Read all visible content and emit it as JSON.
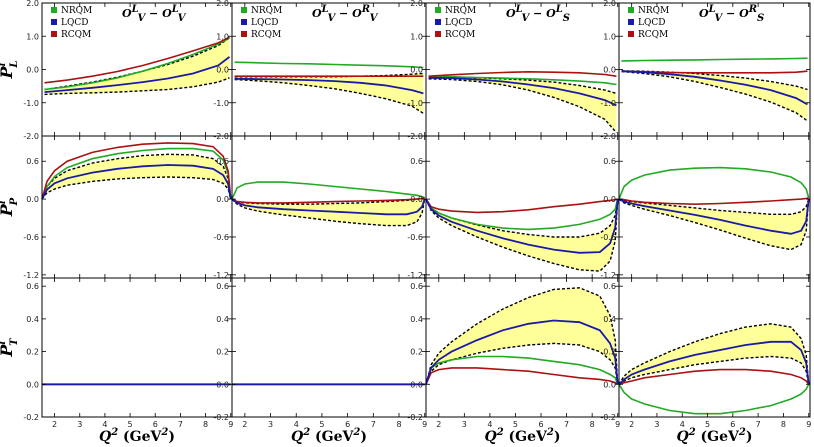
{
  "figure": {
    "row_labels": [
      {
        "main": "P",
        "sup": "i",
        "sub": "L"
      },
      {
        "main": "P",
        "sup": "i",
        "sub": "P"
      },
      {
        "main": "P",
        "sup": "i",
        "sub": "T"
      }
    ],
    "xlabel": {
      "main": "Q",
      "sup": "2",
      "units": " (GeV",
      "units_sup": "2",
      "units_end": ")"
    },
    "x_ticks": [
      "2",
      "3",
      "4",
      "5",
      "6",
      "7",
      "8",
      "9"
    ],
    "legend": [
      "NRQM",
      "LQCD",
      "RCQM"
    ],
    "panel_titles": [
      {
        "base": "O",
        "sup1": "L",
        "sub1": "V",
        "sep": " − ",
        "base2": "O",
        "sup2": "L",
        "sub2": "V"
      },
      {
        "base": "O",
        "sup1": "L",
        "sub1": "V",
        "sep": " − ",
        "base2": "O",
        "sup2": "R",
        "sub2": "V"
      },
      {
        "base": "O",
        "sup1": "L",
        "sub1": "V",
        "sep": " − ",
        "base2": "O",
        "sup2": "L",
        "sub2": "S"
      },
      {
        "base": "O",
        "sup1": "L",
        "sub1": "V",
        "sep": " − ",
        "base2": "O",
        "sup2": "R",
        "sub2": "S"
      }
    ],
    "colors": {
      "NRQM": "#22aa22",
      "LQCD": "#1a1aa8",
      "RCQM": "#aa1111",
      "band": "#ffff99",
      "band_edge": "#000000"
    }
  },
  "chart_data": {
    "type": "line",
    "xlabel": "Q^2 (GeV^2)",
    "xlim": [
      1.5,
      9.05
    ],
    "rows": [
      {
        "ylabel": "P_L^i",
        "ylim": [
          -2.0,
          2.0
        ],
        "y_ticks": [
          -2.0,
          -1.0,
          0.0,
          1.0,
          2.0
        ],
        "y_tick_labels": [
          "-2.0",
          "-1.0",
          "0.0",
          "1.0",
          "2.0"
        ],
        "panels": [
          {
            "x": [
              1.6,
              2.5,
              3.5,
              4.5,
              5.5,
              6.5,
              7.5,
              8.5,
              8.95
            ],
            "NRQM": [
              -0.6,
              -0.52,
              -0.4,
              -0.25,
              -0.05,
              0.18,
              0.45,
              0.76,
              0.95
            ],
            "LQCD": [
              -0.68,
              -0.62,
              -0.55,
              -0.47,
              -0.38,
              -0.27,
              -0.12,
              0.12,
              0.38
            ],
            "RCQM": [
              -0.4,
              -0.32,
              -0.2,
              -0.06,
              0.12,
              0.33,
              0.56,
              0.8,
              0.97
            ],
            "band_upper": [
              -0.6,
              -0.5,
              -0.38,
              -0.23,
              -0.05,
              0.15,
              0.4,
              0.72,
              0.95
            ],
            "band_lower": [
              -0.75,
              -0.72,
              -0.7,
              -0.68,
              -0.64,
              -0.6,
              -0.52,
              -0.38,
              -0.25
            ]
          },
          {
            "x": [
              1.6,
              2.5,
              3.5,
              4.5,
              5.5,
              6.5,
              7.5,
              8.5,
              8.95
            ],
            "NRQM": [
              0.22,
              0.2,
              0.18,
              0.17,
              0.15,
              0.13,
              0.11,
              0.08,
              0.06
            ],
            "LQCD": [
              -0.28,
              -0.29,
              -0.3,
              -0.32,
              -0.35,
              -0.4,
              -0.48,
              -0.62,
              -0.72
            ],
            "RCQM": [
              -0.2,
              -0.2,
              -0.2,
              -0.2,
              -0.2,
              -0.2,
              -0.2,
              -0.2,
              -0.2
            ],
            "band_upper": [
              -0.22,
              -0.22,
              -0.22,
              -0.22,
              -0.22,
              -0.2,
              -0.18,
              -0.14,
              -0.12
            ],
            "band_lower": [
              -0.3,
              -0.34,
              -0.4,
              -0.48,
              -0.58,
              -0.72,
              -0.88,
              -1.1,
              -1.32
            ]
          },
          {
            "x": [
              1.6,
              2.5,
              3.5,
              4.5,
              5.5,
              6.5,
              7.5,
              8.5,
              8.95
            ],
            "NRQM": [
              -0.22,
              -0.22,
              -0.24,
              -0.26,
              -0.28,
              -0.31,
              -0.35,
              -0.4,
              -0.45
            ],
            "LQCD": [
              -0.25,
              -0.26,
              -0.3,
              -0.36,
              -0.45,
              -0.56,
              -0.72,
              -0.92,
              -1.08
            ],
            "RCQM": [
              -0.2,
              -0.16,
              -0.12,
              -0.09,
              -0.07,
              -0.08,
              -0.1,
              -0.15,
              -0.2
            ],
            "band_upper": [
              -0.22,
              -0.22,
              -0.25,
              -0.28,
              -0.32,
              -0.38,
              -0.48,
              -0.62,
              -0.72
            ],
            "band_lower": [
              -0.28,
              -0.3,
              -0.36,
              -0.46,
              -0.62,
              -0.84,
              -1.12,
              -1.5,
              -1.9
            ]
          },
          {
            "x": [
              1.6,
              2.5,
              3.5,
              4.5,
              5.5,
              6.5,
              7.5,
              8.5,
              8.95
            ],
            "NRQM": [
              0.26,
              0.27,
              0.28,
              0.29,
              0.3,
              0.31,
              0.32,
              0.33,
              0.34
            ],
            "LQCD": [
              -0.05,
              -0.08,
              -0.14,
              -0.22,
              -0.33,
              -0.46,
              -0.62,
              -0.86,
              -1.05
            ],
            "RCQM": [
              -0.05,
              -0.07,
              -0.09,
              -0.1,
              -0.1,
              -0.1,
              -0.1,
              -0.08,
              -0.05
            ],
            "band_upper": [
              -0.04,
              -0.05,
              -0.08,
              -0.12,
              -0.18,
              -0.26,
              -0.36,
              -0.5,
              -0.6
            ],
            "band_lower": [
              -0.06,
              -0.12,
              -0.22,
              -0.36,
              -0.54,
              -0.74,
              -0.98,
              -1.3,
              -1.55
            ]
          }
        ]
      },
      {
        "ylabel": "P_P^i",
        "ylim": [
          -1.25,
          1.0
        ],
        "y_ticks": [
          -1.2,
          -0.6,
          0.0,
          0.6
        ],
        "y_tick_labels": [
          "-1.2",
          "-0.6",
          "0.0",
          "0.6"
        ],
        "panels": [
          {
            "x": [
              1.5,
              1.7,
              2.0,
              2.5,
              3.5,
              4.5,
              5.5,
              6.5,
              7.5,
              8.3,
              8.7,
              8.9,
              9.0
            ],
            "NRQM": [
              0.0,
              0.2,
              0.36,
              0.5,
              0.64,
              0.72,
              0.77,
              0.8,
              0.8,
              0.76,
              0.62,
              0.4,
              0.0
            ],
            "LQCD": [
              0.0,
              0.15,
              0.25,
              0.33,
              0.42,
              0.48,
              0.52,
              0.54,
              0.53,
              0.48,
              0.38,
              0.24,
              0.0
            ],
            "RCQM": [
              0.0,
              0.28,
              0.45,
              0.6,
              0.74,
              0.82,
              0.87,
              0.89,
              0.88,
              0.83,
              0.68,
              0.44,
              0.0
            ],
            "band_upper": [
              0.0,
              0.2,
              0.33,
              0.45,
              0.57,
              0.64,
              0.69,
              0.71,
              0.7,
              0.64,
              0.52,
              0.32,
              0.0
            ],
            "band_lower": [
              0.0,
              0.1,
              0.16,
              0.22,
              0.28,
              0.32,
              0.34,
              0.35,
              0.34,
              0.31,
              0.25,
              0.16,
              0.0
            ]
          },
          {
            "x": [
              1.5,
              1.7,
              2.0,
              2.5,
              3.5,
              4.5,
              5.5,
              6.5,
              7.5,
              8.3,
              8.7,
              8.9,
              9.0
            ],
            "NRQM": [
              0.0,
              0.18,
              0.24,
              0.27,
              0.27,
              0.24,
              0.2,
              0.16,
              0.12,
              0.08,
              0.06,
              0.04,
              0.02
            ],
            "LQCD": [
              0.0,
              -0.06,
              -0.1,
              -0.13,
              -0.16,
              -0.18,
              -0.2,
              -0.22,
              -0.24,
              -0.24,
              -0.2,
              -0.12,
              0.0
            ],
            "RCQM": [
              0.0,
              -0.04,
              -0.05,
              -0.06,
              -0.06,
              -0.05,
              -0.04,
              -0.03,
              -0.02,
              -0.01,
              0.0,
              0.01,
              0.02
            ],
            "band_upper": [
              0.0,
              -0.04,
              -0.06,
              -0.07,
              -0.08,
              -0.08,
              -0.07,
              -0.06,
              -0.04,
              -0.02,
              0.0,
              0.01,
              0.0
            ],
            "band_lower": [
              0.0,
              -0.08,
              -0.14,
              -0.19,
              -0.25,
              -0.3,
              -0.35,
              -0.39,
              -0.42,
              -0.42,
              -0.36,
              -0.22,
              0.0
            ]
          },
          {
            "x": [
              1.5,
              1.7,
              2.0,
              2.5,
              3.5,
              4.5,
              5.5,
              6.5,
              7.5,
              8.3,
              8.7,
              8.9,
              9.0
            ],
            "NRQM": [
              0.0,
              -0.14,
              -0.22,
              -0.3,
              -0.4,
              -0.46,
              -0.48,
              -0.46,
              -0.4,
              -0.32,
              -0.24,
              -0.16,
              0.0
            ],
            "LQCD": [
              0.0,
              -0.16,
              -0.26,
              -0.36,
              -0.5,
              -0.62,
              -0.72,
              -0.8,
              -0.85,
              -0.84,
              -0.7,
              -0.45,
              0.0
            ],
            "RCQM": [
              0.0,
              -0.12,
              -0.16,
              -0.19,
              -0.21,
              -0.2,
              -0.17,
              -0.12,
              -0.08,
              -0.04,
              -0.02,
              -0.01,
              0.0
            ],
            "band_upper": [
              0.0,
              -0.14,
              -0.22,
              -0.3,
              -0.41,
              -0.5,
              -0.56,
              -0.6,
              -0.6,
              -0.54,
              -0.42,
              -0.26,
              0.0
            ],
            "band_lower": [
              0.0,
              -0.18,
              -0.3,
              -0.42,
              -0.6,
              -0.76,
              -0.9,
              -1.02,
              -1.12,
              -1.14,
              -0.98,
              -0.66,
              0.0
            ]
          },
          {
            "x": [
              1.5,
              1.7,
              2.0,
              2.5,
              3.5,
              4.5,
              5.5,
              6.5,
              7.5,
              8.3,
              8.7,
              8.9,
              9.0
            ],
            "NRQM": [
              0.0,
              0.2,
              0.3,
              0.38,
              0.46,
              0.49,
              0.5,
              0.48,
              0.43,
              0.35,
              0.26,
              0.16,
              0.02
            ],
            "LQCD": [
              0.0,
              -0.04,
              -0.07,
              -0.11,
              -0.18,
              -0.25,
              -0.33,
              -0.42,
              -0.5,
              -0.55,
              -0.5,
              -0.35,
              0.0
            ],
            "RCQM": [
              0.0,
              -0.01,
              -0.03,
              -0.05,
              -0.07,
              -0.08,
              -0.07,
              -0.05,
              -0.03,
              -0.01,
              0.0,
              0.01,
              0.02
            ],
            "band_upper": [
              0.0,
              -0.02,
              -0.04,
              -0.06,
              -0.1,
              -0.14,
              -0.18,
              -0.21,
              -0.24,
              -0.24,
              -0.2,
              -0.12,
              0.0
            ],
            "band_lower": [
              0.0,
              -0.06,
              -0.1,
              -0.16,
              -0.26,
              -0.37,
              -0.49,
              -0.62,
              -0.74,
              -0.8,
              -0.72,
              -0.5,
              0.0
            ]
          }
        ]
      },
      {
        "ylabel": "P_T^i",
        "ylim": [
          -0.2,
          0.65
        ],
        "y_ticks": [
          -0.2,
          0.0,
          0.2,
          0.4,
          0.6
        ],
        "y_tick_labels": [
          "-0.2",
          "0.0",
          "0.2",
          "0.4",
          "0.6"
        ],
        "panels": [
          {
            "x": [
              1.5,
              9.0
            ],
            "NRQM": [
              0.0,
              0.0
            ],
            "LQCD": [
              0.0,
              0.0
            ],
            "RCQM": [
              0.0,
              0.0
            ],
            "band_upper": [
              0.0,
              0.0
            ],
            "band_lower": [
              0.0,
              0.0
            ]
          },
          {
            "x": [
              1.5,
              9.0
            ],
            "NRQM": [
              0.0,
              0.0
            ],
            "LQCD": [
              0.0,
              0.0
            ],
            "RCQM": [
              0.0,
              0.0
            ],
            "band_upper": [
              0.0,
              0.0
            ],
            "band_lower": [
              0.0,
              0.0
            ]
          },
          {
            "x": [
              1.5,
              1.7,
              2.0,
              2.5,
              3.5,
              4.5,
              5.5,
              6.5,
              7.5,
              8.3,
              8.7,
              8.9,
              9.0
            ],
            "NRQM": [
              0.0,
              0.1,
              0.13,
              0.15,
              0.17,
              0.17,
              0.16,
              0.14,
              0.12,
              0.09,
              0.06,
              0.04,
              0.0
            ],
            "LQCD": [
              0.0,
              0.1,
              0.15,
              0.2,
              0.27,
              0.33,
              0.37,
              0.39,
              0.38,
              0.33,
              0.25,
              0.16,
              0.0
            ],
            "RCQM": [
              0.0,
              0.07,
              0.09,
              0.1,
              0.1,
              0.09,
              0.08,
              0.06,
              0.04,
              0.03,
              0.02,
              0.01,
              0.0
            ],
            "band_upper": [
              0.0,
              0.12,
              0.19,
              0.26,
              0.37,
              0.46,
              0.53,
              0.58,
              0.59,
              0.54,
              0.42,
              0.27,
              0.0
            ],
            "band_lower": [
              0.0,
              0.08,
              0.12,
              0.15,
              0.19,
              0.22,
              0.24,
              0.25,
              0.24,
              0.2,
              0.15,
              0.1,
              0.0
            ]
          },
          {
            "x": [
              1.5,
              1.7,
              2.0,
              2.5,
              3.5,
              4.5,
              5.5,
              6.5,
              7.5,
              8.3,
              8.7,
              8.9,
              9.0
            ],
            "NRQM": [
              0.0,
              -0.05,
              -0.09,
              -0.12,
              -0.16,
              -0.18,
              -0.18,
              -0.16,
              -0.13,
              -0.09,
              -0.06,
              -0.03,
              0.0
            ],
            "LQCD": [
              0.0,
              0.03,
              0.06,
              0.09,
              0.14,
              0.18,
              0.21,
              0.24,
              0.26,
              0.26,
              0.21,
              0.13,
              0.0
            ],
            "RCQM": [
              0.0,
              0.01,
              0.02,
              0.04,
              0.06,
              0.08,
              0.09,
              0.09,
              0.08,
              0.06,
              0.04,
              0.02,
              0.0
            ],
            "band_upper": [
              0.0,
              0.05,
              0.09,
              0.13,
              0.2,
              0.26,
              0.31,
              0.35,
              0.37,
              0.35,
              0.28,
              0.18,
              0.0
            ],
            "band_lower": [
              0.0,
              0.02,
              0.04,
              0.06,
              0.09,
              0.12,
              0.14,
              0.16,
              0.17,
              0.16,
              0.13,
              0.08,
              0.0
            ]
          }
        ]
      }
    ]
  }
}
